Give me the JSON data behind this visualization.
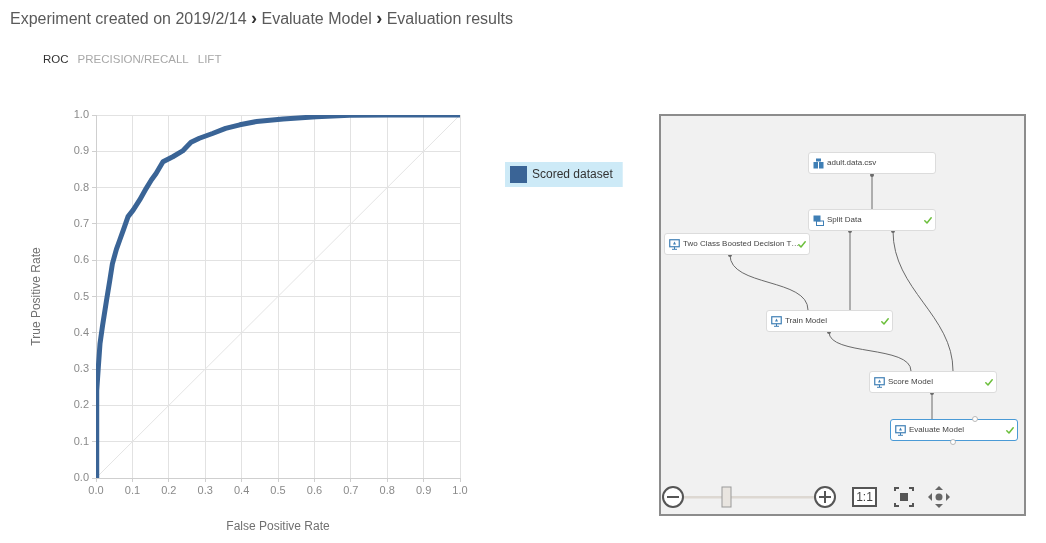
{
  "chart_data": [
    {
      "type": "line",
      "title": "Experiment created on 2019/2/14 › Evaluate Model › Evaluation results",
      "annotations": [
        "ROC",
        "PRECISION/RECALL",
        "LIFT"
      ],
      "xlabel": "False Positive Rate",
      "ylabel": "True Positive Rate",
      "xlim": [
        0,
        1
      ],
      "ylim": [
        0,
        1
      ],
      "xticks": [
        {
          "value": 0,
          "label": "0.0"
        },
        0.1,
        0.2,
        0.3,
        0.4,
        0.5,
        0.6,
        0.7,
        0.8,
        0.9,
        {
          "value": 1,
          "label": "1.0"
        }
      ],
      "yticks": [
        {
          "value": 0,
          "label": "0.0"
        },
        0.1,
        0.2,
        0.3,
        0.4,
        0.5,
        0.6,
        0.7,
        0.8,
        0.9,
        {
          "value": 1,
          "label": "1.0"
        }
      ],
      "grid": true,
      "legend": "right",
      "series": [
        {
          "name": "Scored dataset",
          "color": "#3a6496",
          "x": [
            0,
            0.002,
            0.006,
            0.011,
            0.018,
            0.029,
            0.038,
            0.045,
            0.056,
            0.065,
            0.075,
            0.088,
            0.102,
            0.12,
            0.138,
            0.152,
            0.165,
            0.184,
            0.211,
            0.238,
            0.261,
            0.284,
            0.32,
            0.356,
            0.395,
            0.441,
            0.514,
            0.605,
            0.697,
            0.8,
            1
          ],
          "values": [
            0,
            0.24,
            0.3,
            0.37,
            0.42,
            0.49,
            0.545,
            0.59,
            0.63,
            0.655,
            0.683,
            0.72,
            0.738,
            0.766,
            0.798,
            0.821,
            0.839,
            0.871,
            0.885,
            0.901,
            0.925,
            0.936,
            0.949,
            0.963,
            0.973,
            0.982,
            0.989,
            0.995,
            0.999,
            1,
            1
          ]
        },
        {
          "color": "#e4e4e4",
          "x": [
            0,
            1
          ],
          "values": [
            0,
            1
          ]
        }
      ]
    },
    {
      "type": "other",
      "annotations": [
        "adult.data.csv",
        "Split Data",
        "Two Class Boosted Decision T…",
        "Train Model",
        "Score Model",
        "Evaluate Model",
        "1:1"
      ]
    }
  ]
}
